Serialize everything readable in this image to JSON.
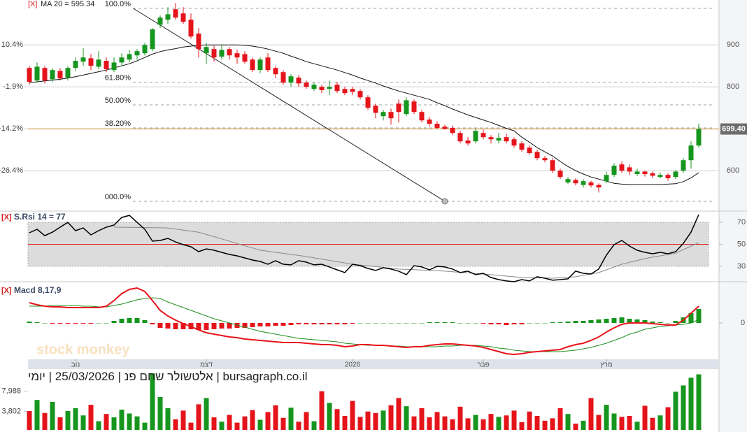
{
  "chart_data": {
    "type": "candlestick",
    "title": "bursagraph.co.il | אלטשולר שחם פנ | 25/03/2026 | יומי",
    "watermark": "stock monkey",
    "xticks": [
      {
        "value": 6,
        "label": "נוב"
      },
      {
        "value": 23,
        "label": "דצמ"
      },
      {
        "value": 42,
        "label": "2026"
      },
      {
        "value": 59,
        "label": "פבר"
      },
      {
        "value": 75,
        "label": "מרץ"
      }
    ],
    "price": {
      "remove": "[X]",
      "legend": "MA 20 = 595.34",
      "up_color": "#16961e",
      "down_color": "#e5141b",
      "ma_color": "#111111",
      "last_color": "#d98c2b",
      "open": [
        845,
        815,
        845,
        818,
        838,
        822,
        845,
        860,
        868,
        848,
        862,
        840,
        858,
        865,
        875,
        880,
        890,
        948,
        960,
        985,
        975,
        960,
        927,
        880,
        890,
        872,
        890,
        880,
        878,
        865,
        840,
        870,
        845,
        835,
        810,
        822,
        810,
        795,
        800,
        795,
        805,
        795,
        795,
        790,
        775,
        755,
        730,
        740,
        760,
        735,
        765,
        740,
        722,
        712,
        705,
        702,
        690,
        672,
        670,
        690,
        680,
        672,
        680,
        675,
        665,
        655,
        645,
        630,
        625,
        600,
        572,
        578,
        566,
        572,
        566,
        575,
        590,
        615,
        608,
        592,
        598,
        594,
        585,
        590,
        585,
        600,
        625,
        660
      ],
      "high": [
        850,
        858,
        850,
        845,
        845,
        850,
        870,
        892,
        878,
        885,
        870,
        870,
        880,
        888,
        890,
        905,
        940,
        970,
        990,
        1000,
        990,
        975,
        940,
        905,
        898,
        900,
        895,
        888,
        885,
        870,
        870,
        880,
        850,
        840,
        830,
        828,
        815,
        810,
        805,
        815,
        812,
        800,
        800,
        795,
        780,
        760,
        745,
        748,
        770,
        775,
        770,
        745,
        728,
        718,
        710,
        708,
        695,
        680,
        700,
        698,
        685,
        690,
        688,
        680,
        670,
        660,
        650,
        635,
        630,
        605,
        585,
        582,
        580,
        576,
        570,
        598,
        618,
        622,
        615,
        605,
        600,
        598,
        596,
        594,
        602,
        630,
        670,
        712
      ],
      "low": [
        805,
        810,
        808,
        812,
        815,
        815,
        838,
        850,
        840,
        842,
        835,
        835,
        850,
        858,
        865,
        875,
        885,
        940,
        950,
        960,
        950,
        915,
        870,
        855,
        860,
        865,
        865,
        855,
        855,
        835,
        832,
        835,
        820,
        805,
        800,
        800,
        795,
        790,
        785,
        780,
        785,
        780,
        780,
        770,
        745,
        725,
        720,
        710,
        715,
        730,
        735,
        715,
        705,
        700,
        698,
        685,
        665,
        660,
        665,
        675,
        665,
        665,
        665,
        655,
        645,
        638,
        625,
        620,
        595,
        580,
        568,
        565,
        560,
        560,
        548,
        570,
        585,
        595,
        590,
        588,
        586,
        582,
        582,
        576,
        580,
        595,
        605,
        655
      ],
      "close": [
        812,
        848,
        815,
        840,
        820,
        845,
        862,
        870,
        850,
        865,
        842,
        858,
        870,
        878,
        885,
        900,
        937,
        965,
        973,
        965,
        955,
        920,
        890,
        895,
        870,
        888,
        875,
        870,
        860,
        840,
        865,
        840,
        830,
        810,
        825,
        808,
        800,
        805,
        792,
        800,
        790,
        785,
        788,
        775,
        750,
        738,
        740,
        725,
        740,
        768,
        740,
        720,
        712,
        702,
        700,
        690,
        670,
        665,
        695,
        680,
        675,
        678,
        670,
        660,
        650,
        642,
        630,
        625,
        600,
        585,
        580,
        570,
        575,
        565,
        560,
        590,
        612,
        600,
        598,
        598,
        592,
        588,
        590,
        582,
        598,
        625,
        660,
        699.4
      ],
      "ma": [
        810,
        812,
        814,
        816,
        818,
        821,
        824,
        828,
        832,
        836,
        840,
        845,
        850,
        855,
        862,
        870,
        878,
        884,
        888,
        891,
        895,
        897,
        899,
        900,
        900,
        900,
        900,
        900,
        899,
        897,
        894,
        890,
        885,
        880,
        873,
        867,
        860,
        855,
        850,
        845,
        840,
        834,
        828,
        821,
        815,
        809,
        802,
        796,
        790,
        785,
        780,
        775,
        770,
        762,
        755,
        747,
        740,
        733,
        727,
        721,
        715,
        708,
        701,
        695,
        680,
        668,
        655,
        645,
        635,
        622,
        610,
        600,
        592,
        585,
        580,
        575,
        570,
        568,
        567,
        567,
        567,
        567,
        567,
        568,
        569,
        574,
        583,
        595.34
      ],
      "ylim": [
        507,
        1007
      ],
      "yticks": [
        600,
        700,
        800,
        900
      ],
      "pct_ticks": [
        {
          "value": 900,
          "label": "10.4%"
        },
        {
          "value": 800,
          "label": "-1.9%"
        },
        {
          "value": 700,
          "label": "-14.2%"
        },
        {
          "value": 600,
          "label": "-26.4%"
        }
      ],
      "last": {
        "value": 699.4,
        "label": "699.40"
      },
      "fib_levels": [
        {
          "value": 987,
          "label": "100.0%"
        },
        {
          "value": 811,
          "label": "61.80%"
        },
        {
          "value": 757,
          "label": "50.00%"
        },
        {
          "value": 702,
          "label": "38.20%"
        },
        {
          "value": 527,
          "label": "000.0%"
        }
      ],
      "trend_line": {
        "x": [
          13.5,
          54
        ],
        "y": [
          987,
          527
        ]
      }
    },
    "rsi": {
      "remove": "[X]",
      "legend": "S.Rsi 14 = 77",
      "color": "#000000",
      "signal_color": "#888888",
      "band_color": "#dcdcdc",
      "mid_color": "#e02020",
      "values": [
        60.5,
        63.7,
        57.9,
        61.1,
        65.6,
        70.0,
        62.4,
        64.9,
        58.6,
        62.4,
        65.6,
        67.5,
        74.4,
        76.3,
        70.0,
        63.7,
        52.9,
        53.5,
        55.4,
        52.2,
        49.7,
        47.8,
        43.3,
        45.9,
        44.6,
        42.7,
        40.8,
        39.5,
        37.6,
        35.7,
        34.4,
        31.9,
        35.1,
        31.9,
        31.3,
        35.1,
        33.8,
        31.3,
        31.9,
        29.4,
        26.8,
        24.3,
        31.9,
        30.6,
        28.1,
        26.2,
        28.7,
        27.5,
        25.6,
        22.4,
        30.6,
        29.4,
        26.8,
        30.0,
        29.4,
        27.5,
        24.3,
        25.6,
        22.4,
        23.6,
        19.8,
        17.9,
        16.7,
        16.0,
        17.9,
        16.7,
        20.5,
        19.2,
        17.3,
        17.9,
        18.6,
        25.6,
        23.6,
        23.0,
        27.5,
        40.2,
        49.7,
        53.5,
        48.4,
        44.6,
        42.7,
        41.4,
        42.7,
        41.4,
        43.3,
        50.9,
        61.1,
        77
      ],
      "signal": [
        null,
        null,
        null,
        null,
        null,
        null,
        null,
        null,
        null,
        null,
        null,
        65.6,
        65.5,
        65.4,
        65.3,
        65.2,
        65.1,
        65.0,
        64.9,
        63.9,
        62.9,
        62.0,
        61.0,
        59.0,
        57.0,
        54.9,
        52.9,
        50.8,
        48.7,
        46.7,
        44.6,
        43.7,
        42.7,
        41.8,
        40.8,
        39.9,
        38.9,
        37.7,
        36.6,
        35.4,
        34.2,
        33.1,
        31.9,
        31.2,
        30.4,
        29.7,
        29.0,
        28.2,
        27.5,
        27.2,
        26.9,
        26.6,
        26.2,
        25.9,
        25.6,
        25.1,
        24.5,
        24.0,
        23.5,
        22.9,
        22.4,
        21.8,
        21.1,
        20.5,
        19.8,
        19.7,
        19.5,
        19.4,
        19.2,
        19.6,
        20.1,
        20.5,
        21.8,
        23.0,
        24.3,
        26.8,
        29.4,
        31.9,
        33.6,
        35.3,
        37.0,
        38.3,
        39.5,
        40.8,
        42.0,
        45.2,
        48.4,
        51.6
      ],
      "ylim": [
        17.9,
        78.3
      ],
      "yticks": [
        30,
        50,
        70
      ],
      "band": [
        30,
        70
      ],
      "midline": 50
    },
    "macd": {
      "remove": "[X]",
      "legend": "Macd 8,17,9",
      "color": "#e8141b",
      "signal_color": "#1f8f1f",
      "up_color": "#16961e",
      "down_color": "#e5141b",
      "macd": [
        29,
        26,
        24,
        23,
        23,
        22,
        22,
        22,
        22,
        22,
        24,
        32,
        42,
        48,
        50,
        45,
        32,
        18,
        10,
        4,
        -1,
        -5,
        -10,
        -14,
        -16,
        -18,
        -20,
        -21,
        -23,
        -24,
        -25,
        -26,
        -27,
        -28,
        -28,
        -28,
        -29,
        -30,
        -31,
        -31,
        -32,
        -34,
        -33,
        -31,
        -31,
        -32,
        -32,
        -33,
        -34,
        -35,
        -34,
        -34,
        -32,
        -31,
        -30,
        -30,
        -31,
        -32,
        -33,
        -35,
        -38,
        -41,
        -44,
        -45,
        -44,
        -42,
        -41,
        -40,
        -39,
        -38,
        -34,
        -31,
        -29,
        -25,
        -20,
        -13,
        -7,
        -2,
        0,
        0,
        0,
        -1,
        -2,
        -3,
        -3,
        4,
        14,
        24
      ],
      "signal": [
        24,
        24,
        24,
        25,
        25,
        25,
        25,
        24,
        24,
        23,
        23,
        25,
        27,
        30,
        33,
        35,
        36,
        35,
        30,
        26,
        22,
        18,
        14,
        10,
        6,
        3,
        0,
        -3,
        -6,
        -9,
        -12,
        -14,
        -16,
        -18,
        -20,
        -22,
        -23,
        -24,
        -25,
        -26,
        -27,
        -29,
        -30,
        -31,
        -32,
        -32,
        -32,
        -33,
        -33,
        -34,
        -34,
        -34,
        -34,
        -34,
        -33,
        -33,
        -32,
        -32,
        -32,
        -33,
        -34,
        -36,
        -37,
        -39,
        -40,
        -41,
        -41,
        -41,
        -41,
        -41,
        -40,
        -39,
        -37,
        -35,
        -32,
        -29,
        -25,
        -21,
        -16,
        -13,
        -9,
        -7,
        -5,
        -4,
        -3,
        -2,
        0,
        5
      ],
      "histogram": [
        2,
        1,
        0,
        -1,
        -1,
        -1,
        -1,
        -1,
        -1,
        0,
        0,
        3,
        6,
        7,
        7,
        4,
        -2,
        -7,
        -8,
        -9,
        -9,
        -9,
        -10,
        -10,
        -9,
        -8,
        -8,
        -7,
        -7,
        -6,
        -5,
        -5,
        -4,
        -4,
        -3,
        -2,
        -2,
        -2,
        -2,
        -2,
        -2,
        -2,
        -1,
        0,
        0,
        0,
        0,
        0,
        0,
        0,
        0,
        0,
        1,
        1,
        1,
        1,
        0,
        0,
        0,
        -1,
        -2,
        -2,
        -3,
        -2,
        -2,
        0,
        0,
        0,
        1,
        1,
        2,
        3,
        3,
        4,
        5,
        6,
        7,
        8,
        6,
        5,
        4,
        2,
        1,
        0,
        3,
        8,
        14,
        20
      ],
      "ylim": [
        -48,
        57
      ],
      "yticks": [
        0
      ]
    },
    "volume": {
      "values": [
        3900,
        6200,
        3500,
        5800,
        2600,
        3900,
        4500,
        3000,
        5200,
        1800,
        3300,
        2600,
        4200,
        3400,
        2800,
        1500,
        11700,
        6800,
        4500,
        2200,
        4000,
        1500,
        5300,
        6600,
        2600,
        1700,
        3100,
        1500,
        2800,
        4100,
        2100,
        3700,
        5100,
        2500,
        4600,
        1700,
        3700,
        1800,
        8000,
        5600,
        4300,
        2900,
        6000,
        2700,
        3800,
        3500,
        4000,
        5100,
        6600,
        4900,
        2800,
        4500,
        2600,
        3700,
        2800,
        2200,
        4800,
        2400,
        3100,
        2200,
        3300,
        2700,
        3000,
        4000,
        1600,
        3800,
        2900,
        1900,
        2400,
        4500,
        3300,
        1300,
        1900,
        6600,
        3100,
        5200,
        3400,
        2700,
        2900,
        1700,
        5000,
        2500,
        3000,
        4700,
        7900,
        9200,
        10800,
        11500
      ],
      "ylim": [
        0,
        12300
      ],
      "yticks": [
        {
          "value": 3802,
          "label": "3,802"
        },
        {
          "value": 7988,
          "label": "7,988"
        }
      ]
    }
  }
}
